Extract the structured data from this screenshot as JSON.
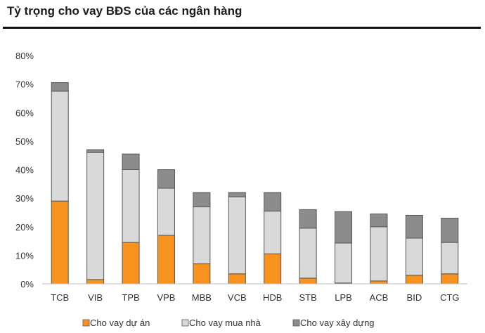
{
  "chart_data": {
    "type": "bar",
    "stacked": true,
    "title": "Tỷ trọng cho vay BĐS của các ngân hàng",
    "xlabel": "",
    "ylabel": "",
    "ylim": [
      0,
      80
    ],
    "y_ticks": [
      "0%",
      "10%",
      "20%",
      "30%",
      "40%",
      "50%",
      "60%",
      "70%",
      "80%"
    ],
    "y_tick_values": [
      0,
      10,
      20,
      30,
      40,
      50,
      60,
      70,
      80
    ],
    "grid": false,
    "legend_position": "bottom",
    "categories": [
      "TCB",
      "VIB",
      "TPB",
      "VPB",
      "MBB",
      "VCB",
      "HDB",
      "STB",
      "LPB",
      "ACB",
      "BID",
      "CTG"
    ],
    "series": [
      {
        "name": "Cho vay dự án",
        "color": "#f7931e",
        "values": [
          29,
          1.5,
          14.5,
          17,
          7,
          3.5,
          10.5,
          2,
          0.3,
          1,
          3,
          3.5
        ]
      },
      {
        "name": "Cho vay mua nhà",
        "color": "#d9d9d9",
        "values": [
          38.5,
          44.5,
          25.5,
          16.5,
          20,
          27,
          15,
          17.5,
          14,
          19,
          13,
          11
        ]
      },
      {
        "name": "Cho vay xây dựng",
        "color": "#8c8c8c",
        "values": [
          3,
          1,
          5.5,
          6.5,
          5,
          1.5,
          6.5,
          6.5,
          11,
          4.5,
          8,
          8.5
        ]
      }
    ]
  }
}
